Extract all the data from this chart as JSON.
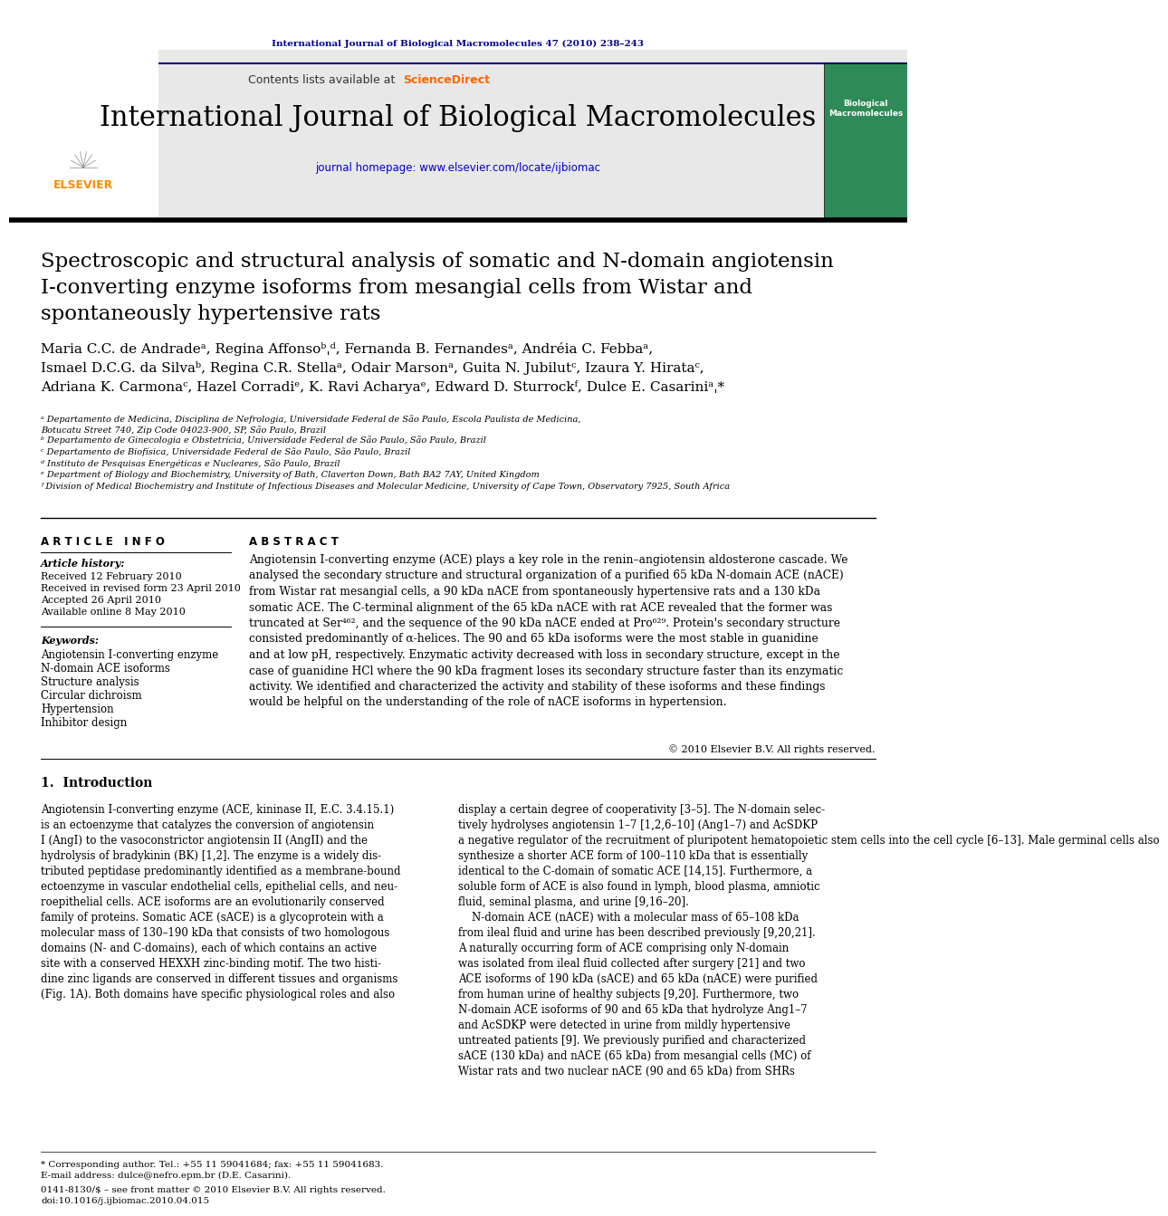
{
  "journal_ref": "International Journal of Biological Macromolecules 47 (2010) 238–243",
  "journal_ref_color": "#00008B",
  "contents_text": "Contents lists available at",
  "sciencedirect_text": "ScienceDirect",
  "sciencedirect_color": "#FF6600",
  "journal_name": "International Journal of Biological Macromolecules",
  "journal_homepage": "journal homepage: www.elsevier.com/locate/ijbiomac",
  "journal_homepage_color": "#0000CD",
  "header_bg": "#E8E8E8",
  "title": "Spectroscopic and structural analysis of somatic and N-domain angiotensin\nI-converting enzyme isoforms from mesangial cells from Wistar and\nspontaneously hypertensive rats",
  "authors": "Maria C.C. de Andradeᵃ, Regina Affonsoᵇˌᵈ, Fernanda B. Fernandesᵃ, Andréia C. Febbaᵃ,\nIsmael D.C.G. da Silvaᵇ, Regina C.R. Stellaᵃ, Odair Marsonᵃ, Guita N. Jubilutᶜ, Izaura Y. Hirataᶜ,\nAdriana K. Carmonaᶜ, Hazel Corradiᵉ, K. Ravi Acharyaᵉ, Edward D. Sturrockᶠ, Dulce E. Casariniᵃˌ*",
  "affil_a": "ᵃ Departamento de Medicina, Disciplina de Nefrologia, Universidade Federal de São Paulo, Escola Paulista de Medicina,\nBotucatu Street 740, Zip Code 04023-900, SP, São Paulo, Brazil",
  "affil_b": "ᵇ Departamento de Ginecologia e Obstetrícia, Universidade Federal de São Paulo, São Paulo, Brazil",
  "affil_c": "ᶜ Departamento de Biofísica, Universidade Federal de São Paulo, São Paulo, Brazil",
  "affil_d": "ᵈ Instituto de Pesquisas Energéticas e Nucleares, São Paulo, Brazil",
  "affil_e": "ᵉ Department of Biology and Biochemistry, University of Bath, Claverton Down, Bath BA2 7AY, United Kingdom",
  "affil_f": "ᶠ Division of Medical Biochemistry and Institute of Infectious Diseases and Molecular Medicine, University of Cape Town, Observatory 7925, South Africa",
  "article_info_title": "A R T I C L E   I N F O",
  "article_history_title": "Article history:",
  "received1": "Received 12 February 2010",
  "received2": "Received in revised form 23 April 2010",
  "accepted": "Accepted 26 April 2010",
  "available": "Available online 8 May 2010",
  "keywords_title": "Keywords:",
  "keywords": [
    "Angiotensin I-converting enzyme",
    "N-domain ACE isoforms",
    "Structure analysis",
    "Circular dichroism",
    "Hypertension",
    "Inhibitor design"
  ],
  "abstract_title": "A B S T R A C T",
  "abstract_text": "Angiotensin I-converting enzyme (ACE) plays a key role in the renin–angiotensin aldosterone cascade. We\nanalysed the secondary structure and structural organization of a purified 65 kDa N-domain ACE (nACE)\nfrom Wistar rat mesangial cells, a 90 kDa nACE from spontaneously hypertensive rats and a 130 kDa\nsomatic ACE. The C-terminal alignment of the 65 kDa nACE with rat ACE revealed that the former was\ntruncated at Ser⁴⁶², and the sequence of the 90 kDa nACE ended at Pro⁶²⁹. Protein's secondary structure\nconsisted predominantly of α-helices. The 90 and 65 kDa isoforms were the most stable in guanidine\nand at low pH, respectively. Enzymatic activity decreased with loss in secondary structure, except in the\ncase of guanidine HCl where the 90 kDa fragment loses its secondary structure faster than its enzymatic\nactivity. We identified and characterized the activity and stability of these isoforms and these findings\nwould be helpful on the understanding of the role of nACE isoforms in hypertension.",
  "copyright": "© 2010 Elsevier B.V. All rights reserved.",
  "intro_title": "1.  Introduction",
  "intro_col1": "Angiotensin I-converting enzyme (ACE, kininase II, E.C. 3.4.15.1)\nis an ectoenzyme that catalyzes the conversion of angiotensin\nI (AngI) to the vasoconstrictor angiotensin II (AngII) and the\nhydrolysis of bradykinin (BK) [1,2]. The enzyme is a widely dis-\ntributed peptidase predominantly identified as a membrane-bound\nectoenzyme in vascular endothelial cells, epithelial cells, and neu-\nroepithelial cells. ACE isoforms are an evolutionarily conserved\nfamily of proteins. Somatic ACE (sACE) is a glycoprotein with a\nmolecular mass of 130–190 kDa that consists of two homologous\ndomains (N- and C-domains), each of which contains an active\nsite with a conserved HEXXH zinc-binding motif. The two histi-\ndine zinc ligands are conserved in different tissues and organisms\n(Fig. 1A). Both domains have specific physiological roles and also",
  "intro_col2": "display a certain degree of cooperativity [3–5]. The N-domain selec-\ntively hydrolyses angiotensin 1–7 [1,2,6–10] (Ang1–7) and AcSDKP\na negative regulator of the recruitment of pluripotent hematopoietic stem cells into the cell cycle [6–13]. Male germinal cells also\nsynthesize a shorter ACE form of 100–110 kDa that is essentially\nidentical to the C-domain of somatic ACE [14,15]. Furthermore, a\nsoluble form of ACE is also found in lymph, blood plasma, amniotic\nfluid, seminal plasma, and urine [9,16–20].\n    N-domain ACE (nACE) with a molecular mass of 65–108 kDa\nfrom ileal fluid and urine has been described previously [9,20,21].\nA naturally occurring form of ACE comprising only N-domain\nwas isolated from ileal fluid collected after surgery [21] and two\nACE isoforms of 190 kDa (sACE) and 65 kDa (nACE) were purified\nfrom human urine of healthy subjects [9,20]. Furthermore, two\nN-domain ACE isoforms of 90 and 65 kDa that hydrolyze Ang1–7\nand AcSDKP were detected in urine from mildly hypertensive\nuntreated patients [9]. We previously purified and characterized\nsACE (130 kDa) and nACE (65 kDa) from mesangial cells (MC) of\nWistar rats and two nuclear nACE (90 and 65 kDa) from SHRs",
  "footnote_corr": "* Corresponding author. Tel.: +55 11 59041684; fax: +55 11 59041683.",
  "footnote_email": "E-mail address: dulce@nefro.epm.br (D.E. Casarini).",
  "footnote_issn": "0141-8130/$ – see front matter © 2010 Elsevier B.V. All rights reserved.",
  "footnote_doi": "doi:10.1016/j.ijbiomac.2010.04.015",
  "bg_color": "#FFFFFF",
  "text_color": "#000000",
  "separator_color": "#000000"
}
